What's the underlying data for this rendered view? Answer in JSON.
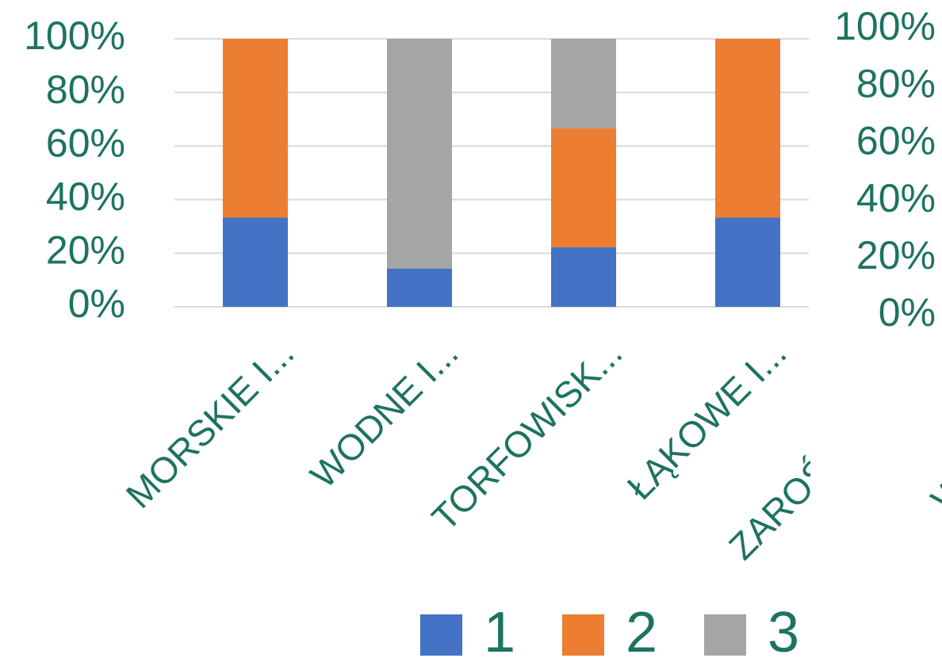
{
  "chart_data": {
    "type": "stacked_bar",
    "categories": [
      "MORSKIE I...",
      "WODNE I...",
      "TORFOWISK...",
      "ŁĄKOWE I...",
      "ZAROŚ",
      "W"
    ],
    "series": [
      {
        "name": "1",
        "color": "#4472c4",
        "values": [
          33.3,
          14.3,
          22.2,
          33.3,
          null,
          null
        ]
      },
      {
        "name": "2",
        "color": "#ed7d31",
        "values": [
          66.7,
          0,
          44.4,
          66.7,
          null,
          null
        ]
      },
      {
        "name": "3",
        "color": "#a5a5a5",
        "values": [
          0,
          85.7,
          33.4,
          0,
          null,
          null
        ]
      }
    ],
    "ylim": [
      0,
      100
    ],
    "yticks": [
      {
        "value": 0,
        "label": "0%"
      },
      {
        "value": 20,
        "label": "20%"
      },
      {
        "value": 40,
        "label": "40%"
      },
      {
        "value": 60,
        "label": "60%"
      },
      {
        "value": 80,
        "label": "80%"
      },
      {
        "value": 100,
        "label": "100%"
      }
    ],
    "y2lim": [
      0,
      100
    ],
    "y2ticks": [
      {
        "value": 0,
        "label": "0%"
      },
      {
        "value": 20,
        "label": "20%"
      },
      {
        "value": 40,
        "label": "40%"
      },
      {
        "value": 60,
        "label": "60%"
      },
      {
        "value": 80,
        "label": "80%"
      },
      {
        "value": 100,
        "label": "100%"
      }
    ],
    "grid": true,
    "legend": "bottom"
  }
}
